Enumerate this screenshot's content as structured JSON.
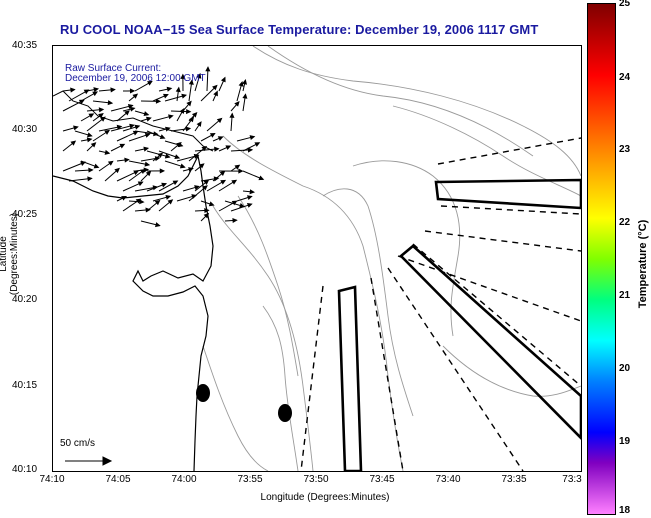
{
  "title": "RU COOL  NOAA−15  Sea Surface Temperature:  December 19, 2006 1117 GMT",
  "overlay": {
    "line1": "Raw Surface Current:",
    "line2": "December 19, 2006 12:00 GMT"
  },
  "axes": {
    "ylabel": "Latitude (Degrees:Minutes)",
    "xlabel": "Longitude (Degrees:Minutes)",
    "yticks": [
      "40:35",
      "40:30",
      "40:25",
      "40:20",
      "40:15",
      "40:10"
    ],
    "xticks": [
      "74:10",
      "74:05",
      "74:00",
      "73:55",
      "73:50",
      "73:45",
      "73:40",
      "73:35",
      "73:3"
    ]
  },
  "scale_bar": {
    "label": "50 cm/s"
  },
  "colorbar": {
    "label": "Temperature (°C)",
    "ticks": [
      "25",
      "24",
      "23",
      "22",
      "21",
      "20",
      "19",
      "18"
    ],
    "colors": [
      "#800000",
      "#ff0000",
      "#ff8000",
      "#ffff00",
      "#00ff80",
      "#00ffff",
      "#0000ff",
      "#ff80ff"
    ]
  },
  "icons": [
    "current-vector-arrow",
    "coastline-outline",
    "bathymetry-contour",
    "radar-station-dot"
  ]
}
